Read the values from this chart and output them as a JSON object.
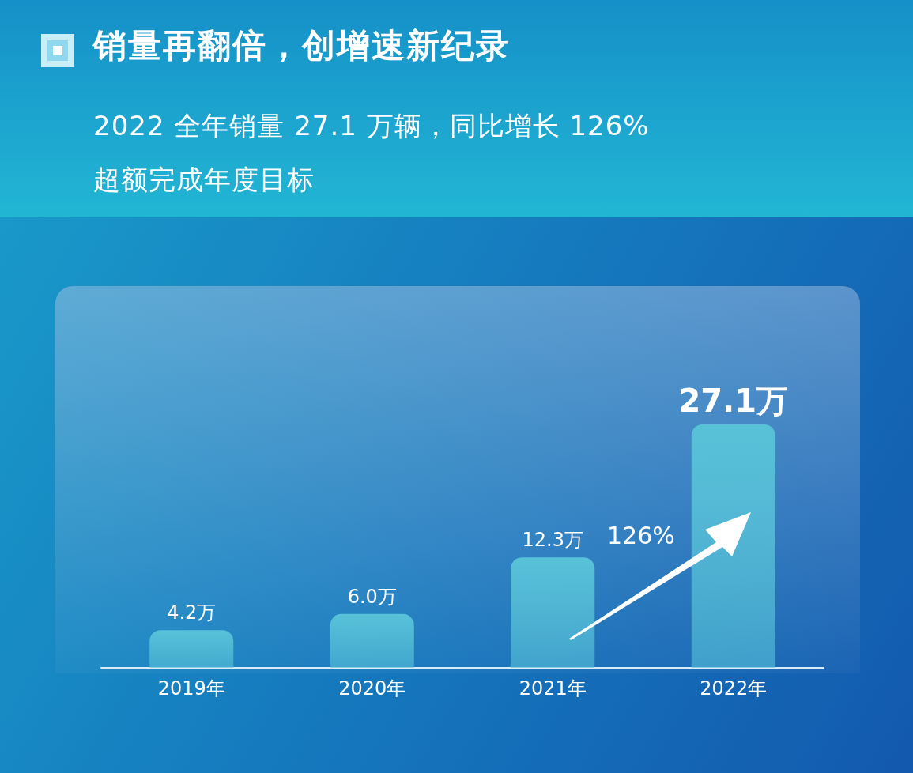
{
  "chart_data": {
    "type": "bar",
    "title": "销量再翻倍，创增速新纪录",
    "subtitle": "2022 全年销量 27.1 万辆，同比增长 126%\n超额完成年度目标",
    "categories": [
      "2019年",
      "2020年",
      "2021年",
      "2022年"
    ],
    "values": [
      4.2,
      6.0,
      12.3,
      27.1
    ],
    "value_labels": [
      "4.2万",
      "6.0万",
      "12.3万",
      "27.1万"
    ],
    "color": "#58c2d8",
    "annotations": [
      "126%"
    ]
  }
}
